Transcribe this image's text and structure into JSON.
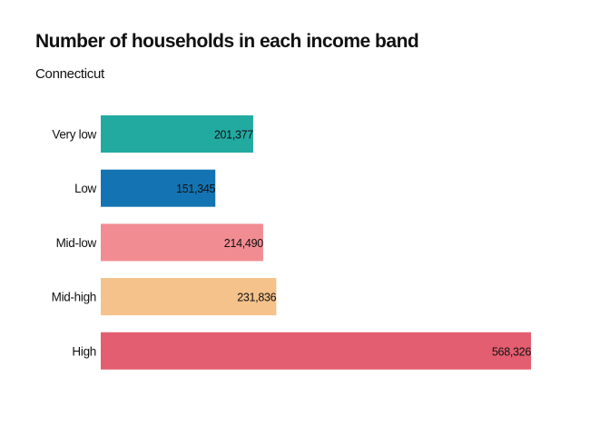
{
  "chart_data": {
    "type": "bar",
    "orientation": "horizontal",
    "title": "Number of households in each income band",
    "subtitle": "Connecticut",
    "categories": [
      "Very low",
      "Low",
      "Mid-low",
      "Mid-high",
      "High"
    ],
    "values": [
      201377,
      151345,
      214490,
      231836,
      568326
    ],
    "value_labels": [
      "201,377",
      "151,345",
      "214,490",
      "231,836",
      "568,326"
    ],
    "colors": [
      "#22aaa1",
      "#1474b3",
      "#f28c93",
      "#f5c28b",
      "#e35e70"
    ],
    "xlim": [
      0,
      568326
    ],
    "grid": false,
    "legend": "none"
  }
}
